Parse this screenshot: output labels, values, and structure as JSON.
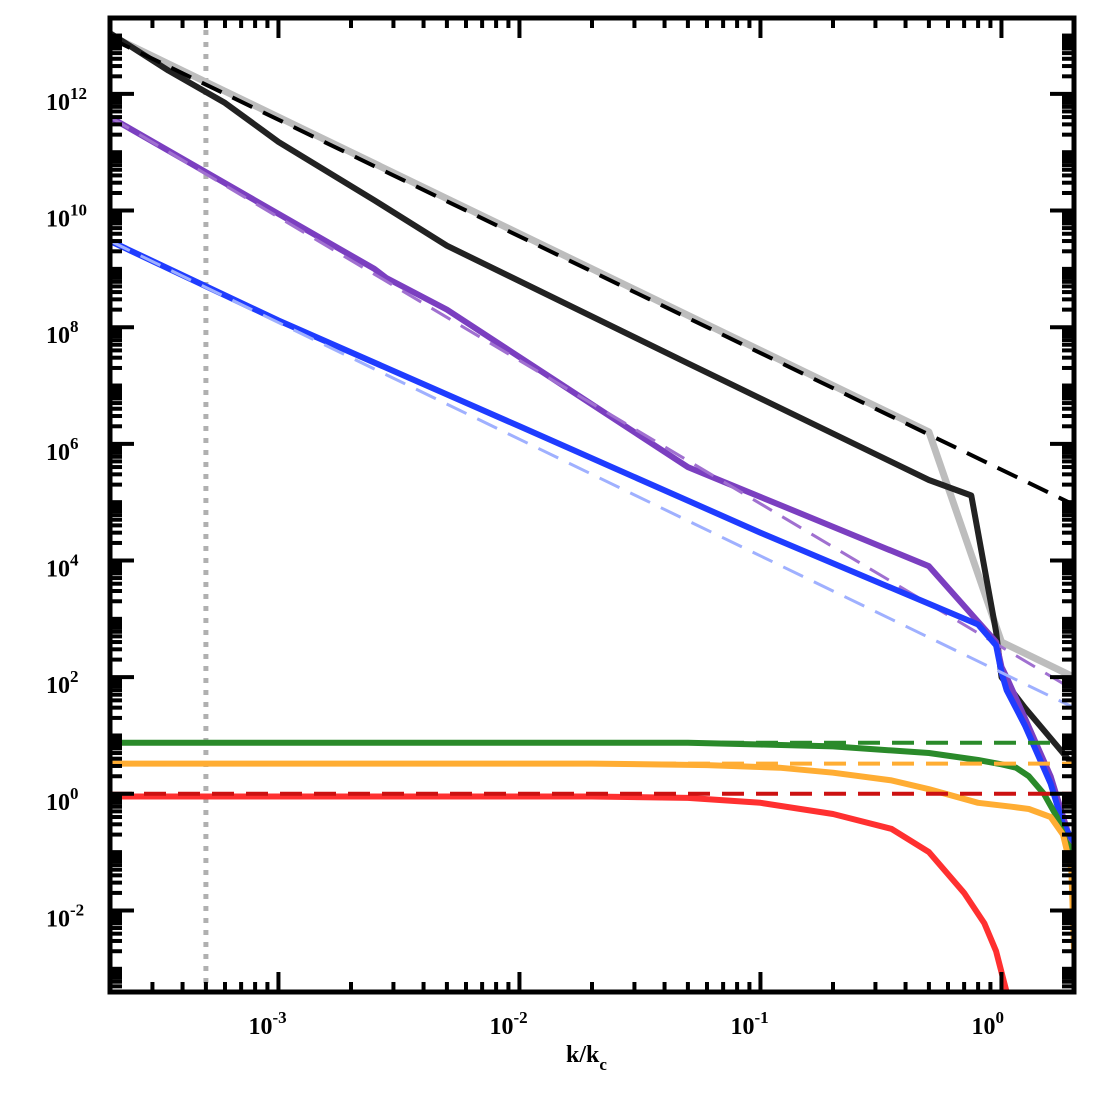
{
  "chart_data": {
    "type": "line",
    "title": "",
    "xlabel": {
      "main": "k/k",
      "sub": "c"
    },
    "ylabel": "",
    "xscale": "log",
    "yscale": "log",
    "xlim": [
      0.0002,
      2.0
    ],
    "ylim": [
      0.0004,
      20000000000000
    ],
    "grid": false,
    "legend": "none",
    "x_ticks": [
      {
        "base": "10",
        "exp": "-3",
        "value": 0.001
      },
      {
        "base": "10",
        "exp": "-2",
        "value": 0.01
      },
      {
        "base": "10",
        "exp": "-1",
        "value": 0.1
      },
      {
        "base": "10",
        "exp": "0",
        "value": 1
      }
    ],
    "y_ticks": [
      {
        "base": "10",
        "exp": "-2",
        "value": 0.01
      },
      {
        "base": "10",
        "exp": "0",
        "value": 1
      },
      {
        "base": "10",
        "exp": "2",
        "value": 100
      },
      {
        "base": "10",
        "exp": "4",
        "value": 10000
      },
      {
        "base": "10",
        "exp": "6",
        "value": 1000000
      },
      {
        "base": "10",
        "exp": "8",
        "value": 100000000
      },
      {
        "base": "10",
        "exp": "10",
        "value": 10000000000
      },
      {
        "base": "10",
        "exp": "12",
        "value": 1000000000000
      }
    ],
    "vertical_marker": {
      "x": 0.0005,
      "color": "#b0b0b0",
      "style": "dotted"
    },
    "series": [
      {
        "color": "#bdbdbd",
        "style": "solid",
        "width": 7,
        "x": [
          0.0002,
          0.0005,
          0.005,
          0.05,
          0.5,
          1.0,
          2.0
        ],
        "y": [
          10000000000000.0,
          1600000000000.0,
          16000000000.0,
          160000000.0,
          1600000.0,
          400.0,
          100.0
        ]
      },
      {
        "color": "#222222",
        "style": "solid",
        "width": 6,
        "x": [
          0.0002,
          0.00035,
          0.0006,
          0.001,
          0.0025,
          0.005,
          0.05,
          0.5,
          0.75,
          0.95,
          1.0,
          1.25,
          2.0
        ],
        "y": [
          11000000000000.0,
          2500000000000.0,
          700000000000.0,
          150000000000.0,
          15000000000.0,
          2500000000.0,
          24000000.0,
          240000.0,
          130000.0,
          600.0,
          100.0,
          30.0,
          3.0
        ]
      },
      {
        "color": "#000000",
        "style": "dashed",
        "width": 4,
        "x": [
          0.0002,
          2.0
        ],
        "y": [
          9000000000000.0,
          90000.0
        ]
      },
      {
        "color": "#7b3fc0",
        "style": "solid",
        "width": 6,
        "x": [
          0.0002,
          0.0025,
          0.0028,
          0.005,
          0.05,
          0.5,
          0.95,
          1.0,
          1.05,
          1.25,
          1.6,
          2.0
        ],
        "y": [
          400000000000.0,
          1000000000.0,
          700000000.0,
          200000000.0,
          400000.0,
          8000.0,
          400.0,
          150.0,
          100.0,
          20.0,
          2.0,
          0.1
        ]
      },
      {
        "color": "#a070d0",
        "style": "dashed",
        "width": 3,
        "x": [
          0.0002,
          2.0
        ],
        "y": [
          400000000000.0,
          60.0
        ]
      },
      {
        "color": "#1f3cff",
        "style": "solid",
        "width": 6,
        "x": [
          0.0002,
          0.001,
          0.01,
          0.1,
          0.8,
          0.95,
          1.0,
          1.05,
          1.25,
          1.6,
          1.8,
          2.0
        ],
        "y": [
          3000000000.0,
          130000000.0,
          2000000.0,
          30000.0,
          800.0,
          350.0,
          120.0,
          60.0,
          15.0,
          1.5,
          0.3,
          0.15
        ]
      },
      {
        "color": "#9fb0ff",
        "style": "dashed",
        "width": 3,
        "x": [
          0.0002,
          2.0
        ],
        "y": [
          3000000000.0,
          30.0
        ]
      },
      {
        "color": "#2a8a2a",
        "style": "solid",
        "width": 6,
        "x": [
          0.0002,
          0.05,
          0.1,
          0.2,
          0.5,
          0.8,
          1.0,
          1.15,
          1.3,
          1.5,
          1.7,
          1.85,
          2.0
        ],
        "y": [
          7.5,
          7.5,
          7.0,
          6.5,
          5.0,
          3.8,
          3.2,
          2.8,
          2.0,
          1.0,
          0.4,
          0.15,
          0.1
        ]
      },
      {
        "color": "#2a8a2a",
        "style": "dashed",
        "width": 4,
        "x": [
          0.0002,
          2.0
        ],
        "y": [
          7.5,
          7.5
        ]
      },
      {
        "color": "#ffad33",
        "style": "solid",
        "width": 6,
        "x": [
          0.0002,
          0.02,
          0.06,
          0.12,
          0.2,
          0.35,
          0.5,
          0.8,
          1.1,
          1.3,
          1.6,
          1.8,
          1.95,
          2.0
        ],
        "y": [
          3.3,
          3.3,
          3.1,
          2.8,
          2.3,
          1.7,
          1.2,
          0.7,
          0.6,
          0.55,
          0.4,
          0.2,
          0.05,
          0.002
        ]
      },
      {
        "color": "#ffad33",
        "style": "dashed",
        "width": 4,
        "x": [
          0.0002,
          2.0
        ],
        "y": [
          3.3,
          3.3
        ]
      },
      {
        "color": "#ff3030",
        "style": "solid",
        "width": 6,
        "x": [
          0.0002,
          0.02,
          0.05,
          0.1,
          0.2,
          0.35,
          0.5,
          0.7,
          0.85,
          0.95,
          1.05
        ],
        "y": [
          0.9,
          0.9,
          0.85,
          0.7,
          0.45,
          0.25,
          0.1,
          0.02,
          0.006,
          0.002,
          0.0004
        ]
      },
      {
        "color": "#cc1111",
        "style": "dashed",
        "width": 4,
        "x": [
          0.0002,
          2.0
        ],
        "y": [
          1.0,
          1.0
        ]
      }
    ]
  }
}
